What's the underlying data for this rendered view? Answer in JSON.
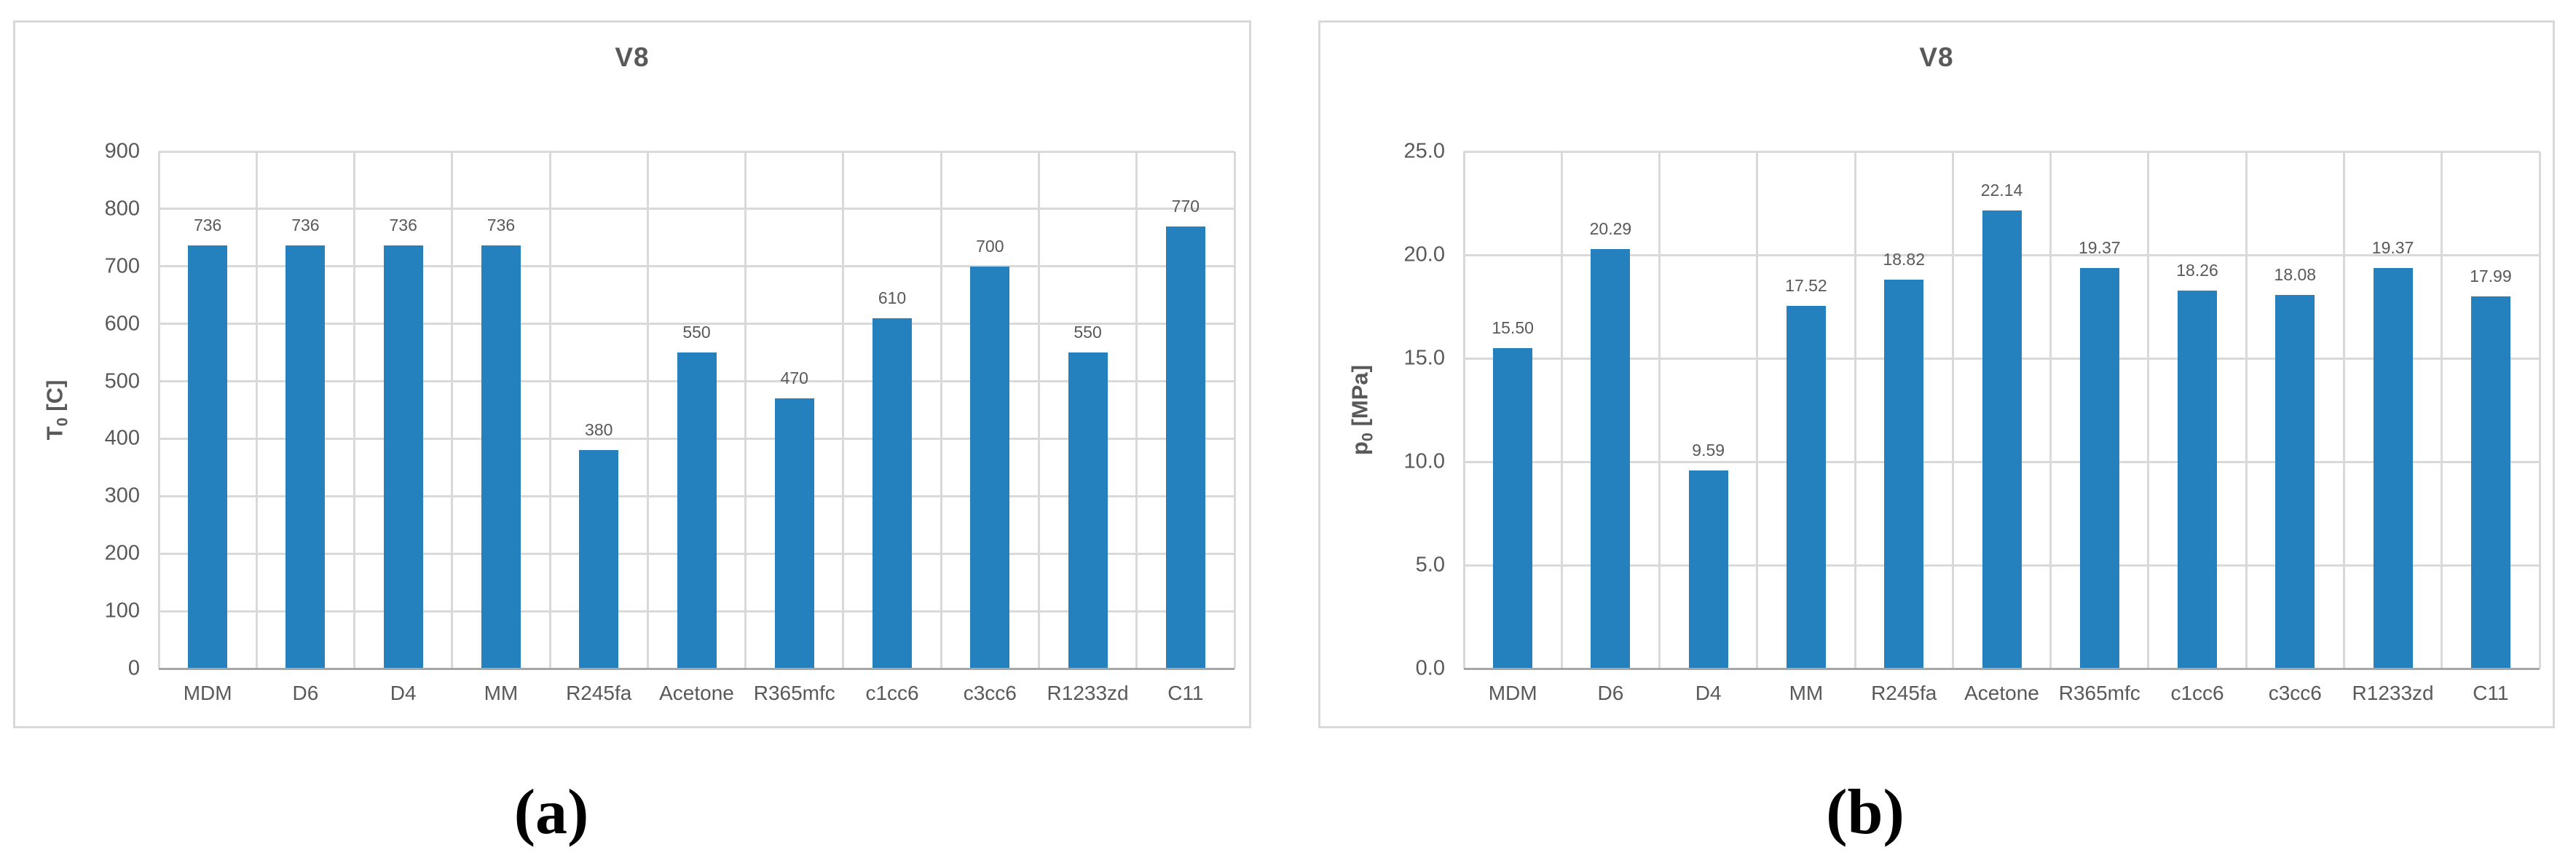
{
  "figure": {
    "captions": [
      {
        "label": "(a)"
      },
      {
        "label": "(b)"
      }
    ]
  },
  "chart_data": [
    {
      "type": "bar",
      "panel": "a",
      "title": "V8",
      "xlabel": "",
      "ylabel": {
        "base": "T",
        "sub": "0",
        "unit": "[C]"
      },
      "categories": [
        "MDM",
        "D6",
        "D4",
        "MM",
        "R245fa",
        "Acetone",
        "R365mfc",
        "c1cc6",
        "c3cc6",
        "R1233zd",
        "C11"
      ],
      "values": [
        736,
        736,
        736,
        736,
        380,
        550,
        470,
        610,
        700,
        550,
        770
      ],
      "value_labels": [
        "736",
        "736",
        "736",
        "736",
        "380",
        "550",
        "470",
        "610",
        "700",
        "550",
        "770"
      ],
      "ylim": [
        0,
        900
      ],
      "yticks": [
        0,
        100,
        200,
        300,
        400,
        500,
        600,
        700,
        800,
        900
      ],
      "ytick_labels": [
        "0",
        "100",
        "200",
        "300",
        "400",
        "500",
        "600",
        "700",
        "800",
        "900"
      ],
      "grid": true,
      "legend": false
    },
    {
      "type": "bar",
      "panel": "b",
      "title": "V8",
      "xlabel": "",
      "ylabel": {
        "base": "p",
        "sub": "0",
        "unit": "[MPa]"
      },
      "categories": [
        "MDM",
        "D6",
        "D4",
        "MM",
        "R245fa",
        "Acetone",
        "R365mfc",
        "c1cc6",
        "c3cc6",
        "R1233zd",
        "C11"
      ],
      "values": [
        15.5,
        20.29,
        9.59,
        17.52,
        18.82,
        22.14,
        19.37,
        18.26,
        18.08,
        19.37,
        17.99
      ],
      "value_labels": [
        "15.50",
        "20.29",
        "9.59",
        "17.52",
        "18.82",
        "22.14",
        "19.37",
        "18.26",
        "18.08",
        "19.37",
        "17.99"
      ],
      "ylim": [
        0,
        25
      ],
      "yticks": [
        0,
        5,
        10,
        15,
        20,
        25
      ],
      "ytick_labels": [
        "0.0",
        "5.0",
        "10.0",
        "15.0",
        "20.0",
        "25.0"
      ],
      "grid": true,
      "legend": false
    }
  ],
  "style": {
    "bar_color": "#2581BE",
    "gridline_color": "#D9D9D9",
    "axis_line_color": "#A6A6A6",
    "text_color": "#595959",
    "panel_border_color": "#D9D9D9"
  }
}
